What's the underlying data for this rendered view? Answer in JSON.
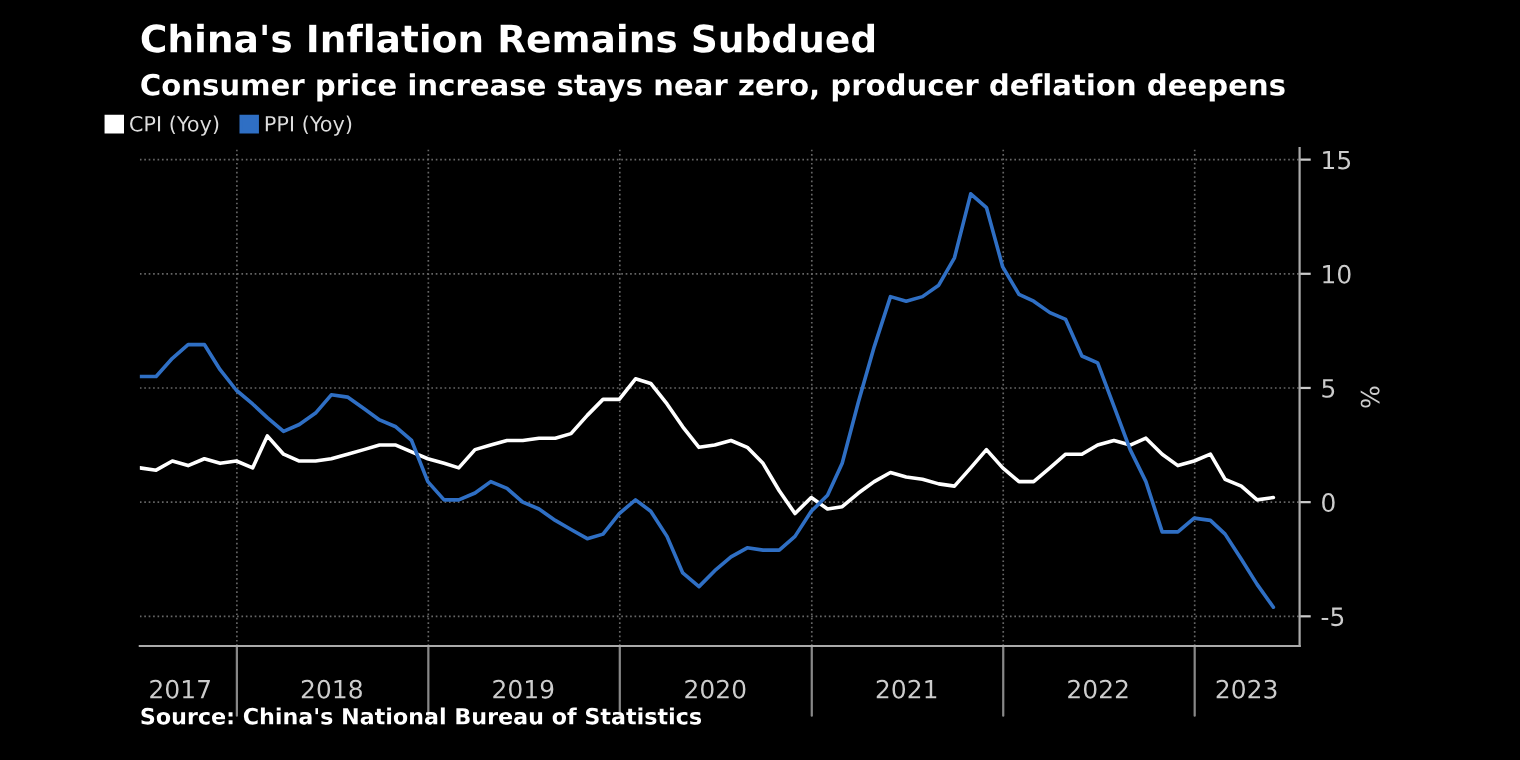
{
  "chart_data": {
    "type": "line",
    "title": "China's Inflation Remains Subdued",
    "subtitle": "Consumer price increase stays near zero, producer deflation deepens",
    "ylabel": "%",
    "x": [
      "2017-06-30",
      "2017-07-31",
      "2017-08-31",
      "2017-09-30",
      "2017-10-31",
      "2017-11-30",
      "2017-12-31",
      "2018-01-31",
      "2018-02-28",
      "2018-03-31",
      "2018-04-30",
      "2018-05-31",
      "2018-06-30",
      "2018-07-31",
      "2018-08-31",
      "2018-09-30",
      "2018-10-31",
      "2018-11-30",
      "2018-12-31",
      "2019-01-31",
      "2019-02-28",
      "2019-03-31",
      "2019-04-30",
      "2019-05-31",
      "2019-06-30",
      "2019-07-31",
      "2019-08-31",
      "2019-09-30",
      "2019-10-31",
      "2019-11-30",
      "2019-12-31",
      "2020-01-31",
      "2020-02-29",
      "2020-03-31",
      "2020-04-30",
      "2020-05-31",
      "2020-06-30",
      "2020-07-31",
      "2020-08-31",
      "2020-09-30",
      "2020-10-31",
      "2020-11-30",
      "2020-12-31",
      "2021-01-31",
      "2021-02-28",
      "2021-03-31",
      "2021-04-30",
      "2021-05-31",
      "2021-06-30",
      "2021-07-31",
      "2021-08-31",
      "2021-09-30",
      "2021-10-31",
      "2021-11-30",
      "2021-12-31",
      "2022-01-31",
      "2022-02-28",
      "2022-03-31",
      "2022-04-30",
      "2022-05-31",
      "2022-06-30",
      "2022-07-31",
      "2022-08-31",
      "2022-09-30",
      "2022-10-31",
      "2022-11-30",
      "2022-12-31",
      "2023-01-31",
      "2023-02-28",
      "2023-03-31",
      "2023-04-30",
      "2023-05-31"
    ],
    "series": [
      {
        "name": "CPI (Yoy)",
        "color": "#ffffff",
        "values": [
          1.5,
          1.4,
          1.8,
          1.6,
          1.9,
          1.7,
          1.8,
          1.5,
          2.9,
          2.1,
          1.8,
          1.8,
          1.9,
          2.1,
          2.3,
          2.5,
          2.5,
          2.2,
          1.9,
          1.7,
          1.5,
          2.3,
          2.5,
          2.7,
          2.7,
          2.8,
          2.8,
          3.0,
          3.8,
          4.5,
          4.5,
          5.4,
          5.2,
          4.3,
          3.3,
          2.4,
          2.5,
          2.7,
          2.4,
          1.7,
          0.5,
          -0.5,
          0.2,
          -0.3,
          -0.2,
          0.4,
          0.9,
          1.3,
          1.1,
          1.0,
          0.8,
          0.7,
          1.5,
          2.3,
          1.5,
          0.9,
          0.9,
          1.5,
          2.1,
          2.1,
          2.5,
          2.7,
          2.5,
          2.8,
          2.1,
          1.6,
          1.8,
          2.1,
          1.0,
          0.7,
          0.1,
          0.2
        ]
      },
      {
        "name": "PPI (Yoy)",
        "color": "#2f6fc4",
        "values": [
          5.5,
          5.5,
          6.3,
          6.9,
          6.9,
          5.8,
          4.9,
          4.3,
          3.7,
          3.1,
          3.4,
          3.9,
          4.7,
          4.6,
          4.1,
          3.6,
          3.3,
          2.7,
          0.9,
          0.1,
          0.1,
          0.4,
          0.9,
          0.6,
          0.0,
          -0.3,
          -0.8,
          -1.2,
          -1.6,
          -1.4,
          -0.5,
          0.1,
          -0.4,
          -1.5,
          -3.1,
          -3.7,
          -3.0,
          -2.4,
          -2.0,
          -2.1,
          -2.1,
          -1.5,
          -0.4,
          0.3,
          1.7,
          4.4,
          6.8,
          9.0,
          8.8,
          9.0,
          9.5,
          10.7,
          13.5,
          12.9,
          10.3,
          9.1,
          8.8,
          8.3,
          8.0,
          6.4,
          6.1,
          4.2,
          2.3,
          0.9,
          -1.3,
          -1.3,
          -0.7,
          -0.8,
          -1.4,
          -2.5,
          -3.6,
          -4.6
        ]
      }
    ],
    "xlim": [
      "2017-06-30",
      "2023-07-20"
    ],
    "xticks": [
      {
        "value": "2018-01-01",
        "label": null
      },
      {
        "value": "2019-01-01",
        "label": null
      },
      {
        "value": "2020-01-01",
        "label": null
      },
      {
        "value": "2021-01-01",
        "label": null
      },
      {
        "value": "2022-01-01",
        "label": null
      },
      {
        "value": "2023-01-01",
        "label": null
      },
      {
        "value": "2017-09-15",
        "label": "2017"
      },
      {
        "value": "2018-07-01",
        "label": "2018"
      },
      {
        "value": "2019-07-01",
        "label": "2019"
      },
      {
        "value": "2020-07-01",
        "label": "2020"
      },
      {
        "value": "2021-07-01",
        "label": "2021"
      },
      {
        "value": "2022-07-01",
        "label": "2022"
      },
      {
        "value": "2023-04-10",
        "label": "2023"
      }
    ],
    "ylim": [
      -6.3,
      15.5
    ],
    "yticks": [
      -5,
      0,
      5,
      10,
      15
    ],
    "grid": true,
    "legend": "top left",
    "line_style": "solid",
    "marker": "none",
    "annotations": [
      "Source: China's National Bureau of Statistics"
    ]
  }
}
